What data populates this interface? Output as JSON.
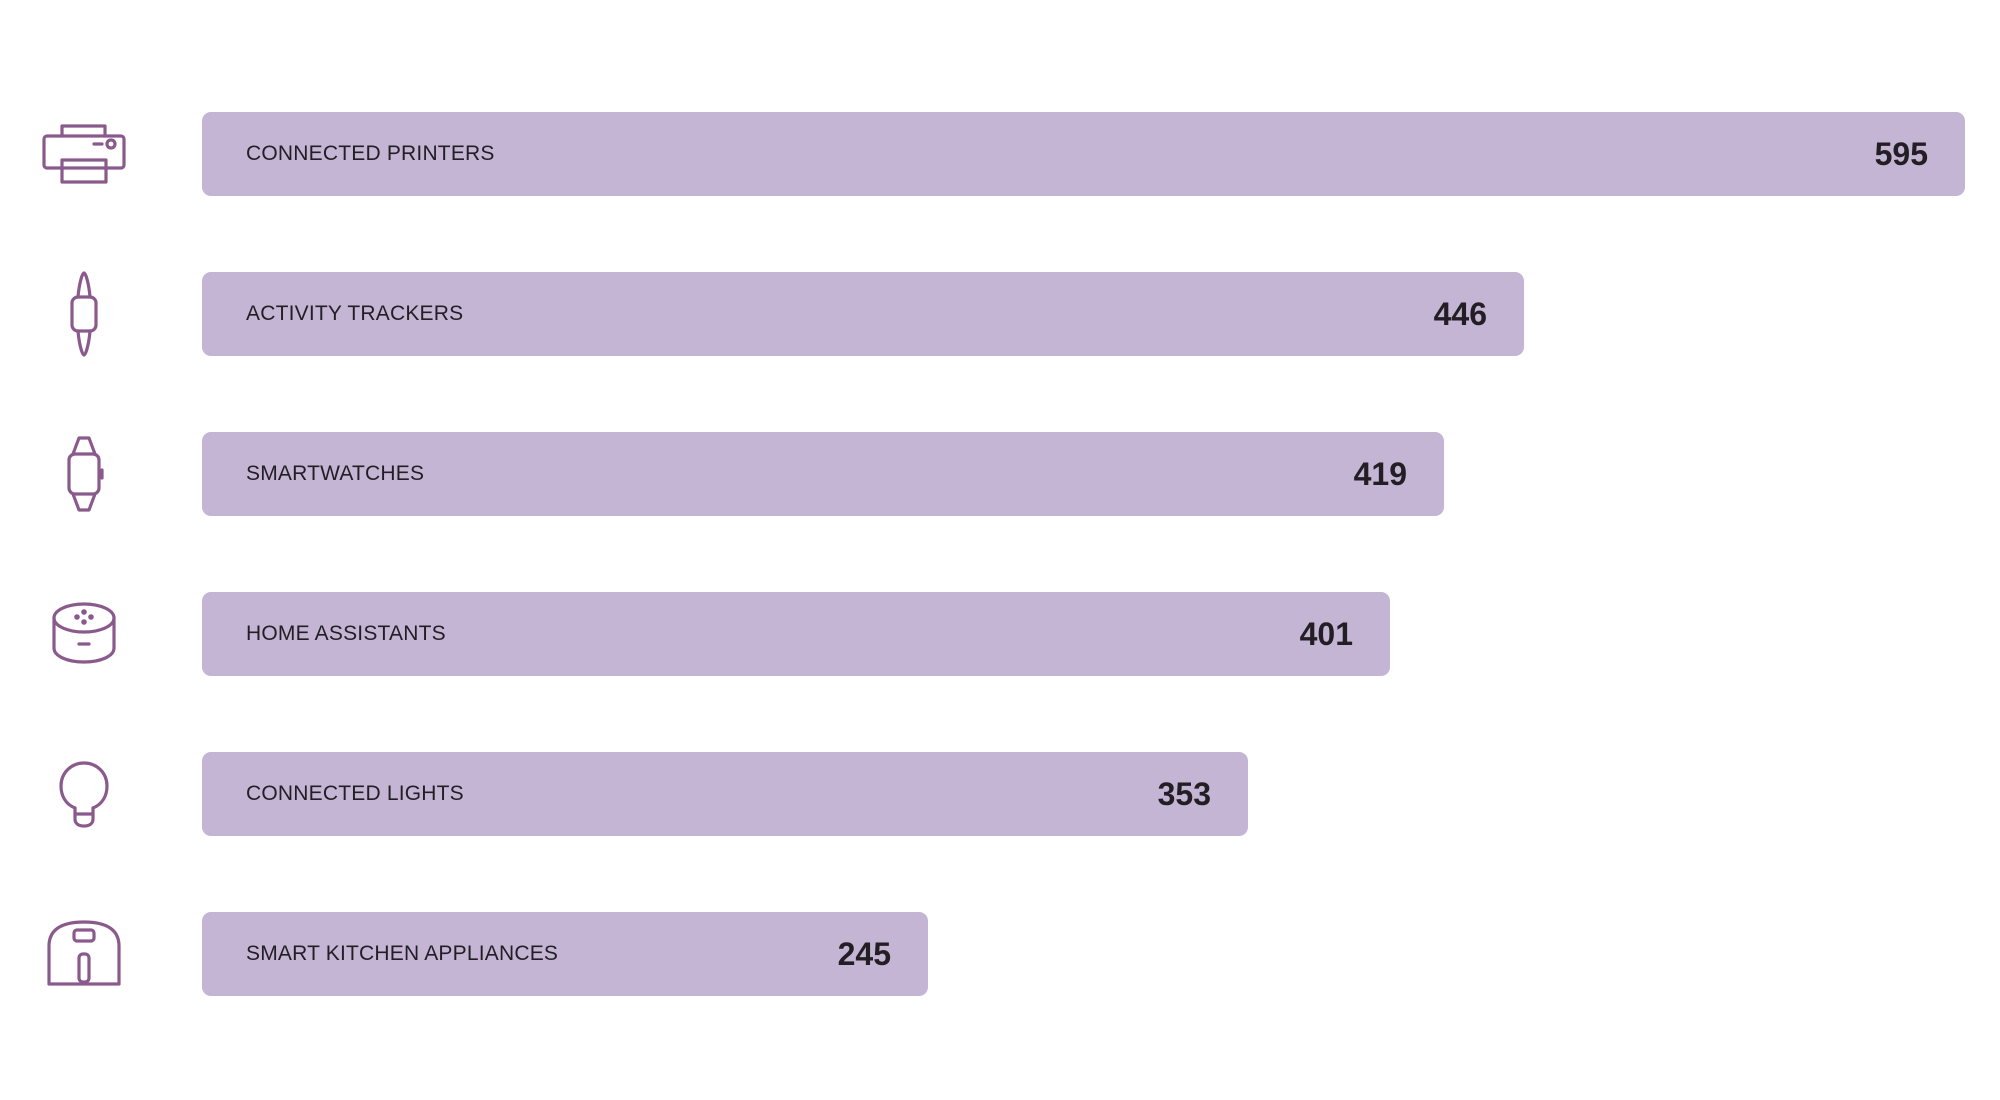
{
  "chart_data": {
    "type": "bar",
    "orientation": "horizontal",
    "title": "",
    "xlabel": "",
    "ylabel": "",
    "categories": [
      "CONNECTED PRINTERS",
      "ACTIVITY TRACKERS",
      "SMARTWATCHES",
      "HOME ASSISTANTS",
      "CONNECTED LIGHTS",
      "SMART KITCHEN APPLIANCES"
    ],
    "values": [
      595,
      446,
      419,
      401,
      353,
      245
    ],
    "value_labels": [
      "595",
      "446",
      "419",
      "401",
      "353",
      "245"
    ],
    "icons": [
      "printer-icon",
      "activity-tracker-icon",
      "smartwatch-icon",
      "home-assistant-icon",
      "light-bulb-icon",
      "air-fryer-icon"
    ],
    "xlim": [
      0,
      595
    ],
    "grid": false,
    "legend": "none",
    "colors": {
      "bar": "#c3b5d3",
      "icon": "#8a5a8c",
      "text": "#221e24"
    }
  }
}
